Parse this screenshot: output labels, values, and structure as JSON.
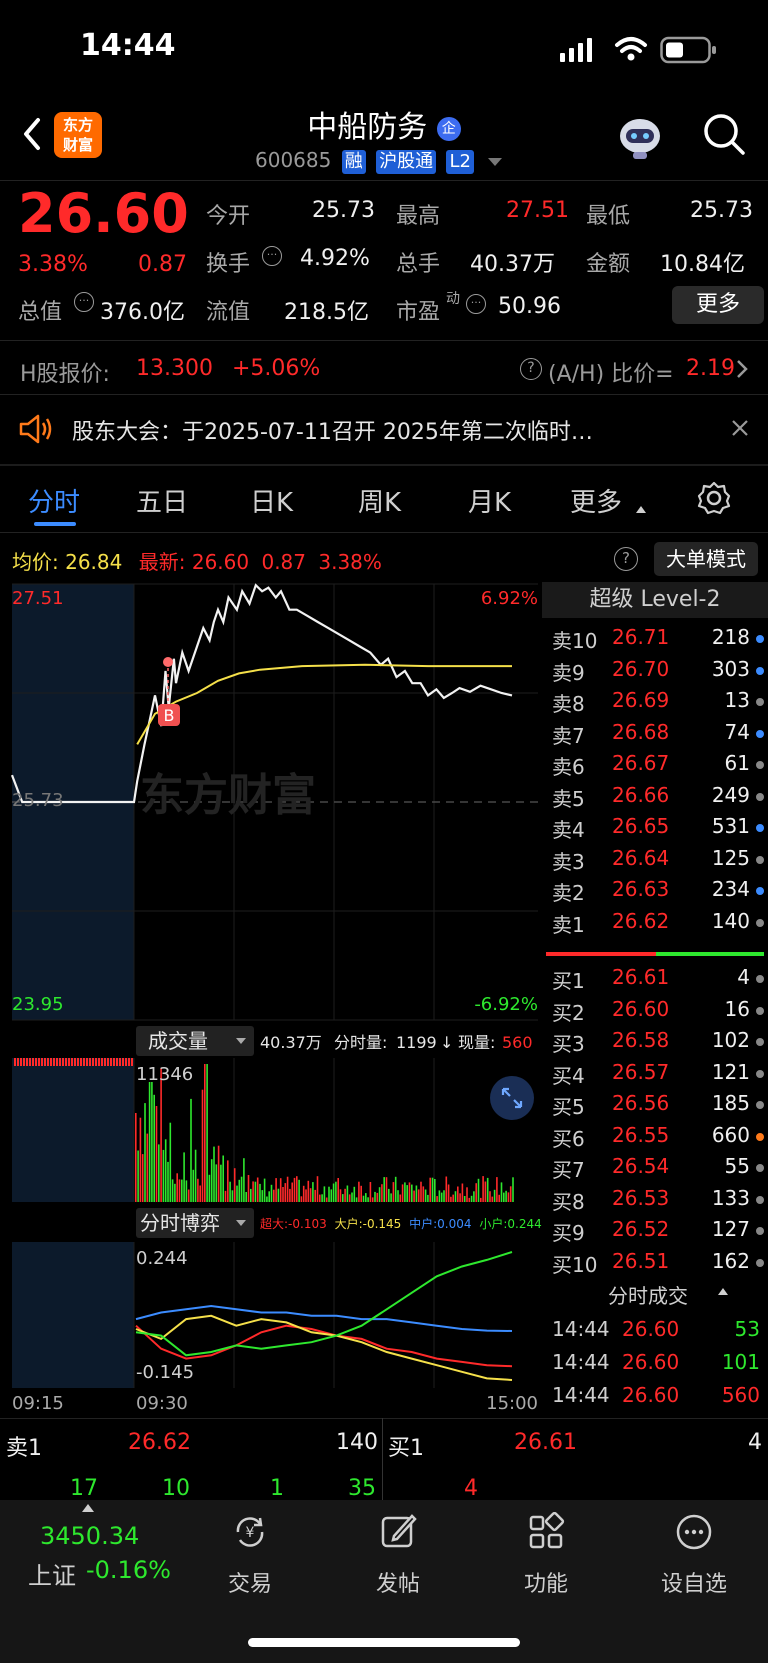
{
  "status": {
    "time": "14:44"
  },
  "header": {
    "logo_line1": "东方",
    "logo_line2": "财富",
    "name": "中船防务",
    "name_badge": "企",
    "code": "600685",
    "tags": [
      "融",
      "沪股通",
      "L2"
    ]
  },
  "quote": {
    "price": "26.60",
    "change_pct": "3.38%",
    "change": "0.87",
    "open_label": "今开",
    "open": "25.73",
    "high_label": "最高",
    "high": "27.51",
    "low_label": "最低",
    "low": "25.73",
    "turnover_label": "换手",
    "turnover": "4.92%",
    "volume_label": "总手",
    "volume": "40.37万",
    "amount_label": "金额",
    "amount": "10.84亿",
    "mktcap_label": "总值",
    "mktcap": "376.0亿",
    "float_label": "流值",
    "float": "218.5亿",
    "pe_label": "市盈",
    "pe_sup": "动",
    "pe": "50.96",
    "more_label": "更多"
  },
  "hshare": {
    "label": "H股报价:",
    "price": "13.300",
    "pct": "+5.06%",
    "ah_label": "(A/H) 比价=",
    "ah_value": "2.19"
  },
  "notice": {
    "text": "股东大会：于2025-07-11召开 2025年第二次临时…"
  },
  "tabs": [
    "分时",
    "五日",
    "日K",
    "周K",
    "月K",
    "更多"
  ],
  "info_line": {
    "avg_label": "均价:",
    "avg": "26.84",
    "latest_label": "最新:",
    "latest": "26.60",
    "latest_chg": "0.87",
    "latest_pct": "3.38%",
    "mode_label": "大单模式"
  },
  "chart_data": {
    "type": "line",
    "price_axis": {
      "top": "27.51",
      "bottom": "23.95",
      "mid": "25.73",
      "top_pct": "6.92%",
      "bottom_pct": "-6.92%"
    },
    "ylim": [
      23.95,
      27.51
    ],
    "watermark": "东方财富",
    "price_series": [
      [
        0,
        25.95
      ],
      [
        1,
        25.73
      ],
      [
        3,
        25.73
      ],
      [
        6,
        25.73
      ],
      [
        9,
        25.73
      ],
      [
        11,
        25.73
      ],
      [
        12,
        25.73
      ],
      [
        12.3,
        25.9
      ],
      [
        13,
        26.2
      ],
      [
        13.5,
        26.4
      ],
      [
        14,
        26.6
      ],
      [
        14.6,
        26.35
      ],
      [
        15,
        26.8
      ],
      [
        15.3,
        26.5
      ],
      [
        15.8,
        26.9
      ],
      [
        16,
        26.7
      ],
      [
        16.6,
        26.95
      ],
      [
        17.2,
        26.8
      ],
      [
        18,
        27.0
      ],
      [
        18.6,
        27.15
      ],
      [
        19.2,
        27.05
      ],
      [
        19.6,
        27.2
      ],
      [
        20,
        27.3
      ],
      [
        20.5,
        27.2
      ],
      [
        21,
        27.4
      ],
      [
        21.8,
        27.3
      ],
      [
        22.3,
        27.45
      ],
      [
        23,
        27.35
      ],
      [
        23.6,
        27.5
      ],
      [
        24.2,
        27.45
      ],
      [
        24.8,
        27.48
      ],
      [
        25.5,
        27.4
      ],
      [
        26,
        27.45
      ],
      [
        26.8,
        27.3
      ],
      [
        27.5,
        27.3
      ],
      [
        28.5,
        27.25
      ],
      [
        29.5,
        27.2
      ],
      [
        30.5,
        27.15
      ],
      [
        31.5,
        27.1
      ],
      [
        32.5,
        27.05
      ],
      [
        33.5,
        27.0
      ],
      [
        34.5,
        26.95
      ],
      [
        35.5,
        26.85
      ],
      [
        36.2,
        26.9
      ],
      [
        37,
        26.75
      ],
      [
        37.8,
        26.8
      ],
      [
        38.5,
        26.7
      ],
      [
        39.3,
        26.7
      ],
      [
        40,
        26.6
      ],
      [
        40.8,
        26.65
      ],
      [
        41.5,
        26.58
      ],
      [
        42.3,
        26.62
      ],
      [
        43,
        26.66
      ],
      [
        44,
        26.63
      ],
      [
        45,
        26.68
      ],
      [
        46,
        26.65
      ],
      [
        47,
        26.62
      ],
      [
        48,
        26.6
      ]
    ],
    "avg_series": [
      [
        12.3,
        26.2
      ],
      [
        14,
        26.45
      ],
      [
        16,
        26.55
      ],
      [
        18,
        26.62
      ],
      [
        20,
        26.72
      ],
      [
        22,
        26.78
      ],
      [
        24,
        26.81
      ],
      [
        28,
        26.84
      ],
      [
        34,
        26.85
      ],
      [
        40,
        26.84
      ],
      [
        48,
        26.84
      ]
    ],
    "marker_label": "B",
    "volume_panel": {
      "title": "成交量",
      "total": "40.37万",
      "period_label": "分时量:",
      "period_value": "1199",
      "now_label": "现量:",
      "now_value": "560",
      "max_label": "11346"
    },
    "game_panel": {
      "title": "分时博弈",
      "super_label": "超大:",
      "super": "-0.103",
      "large_label": "大户:",
      "large": "-0.145",
      "mid_label": "中户:",
      "mid": "0.004",
      "small_label": "小户:",
      "small": "0.244",
      "top": "0.244",
      "bottom": "-0.145",
      "ylim": [
        -0.145,
        0.244
      ],
      "series": [
        {
          "name": "超大",
          "color": "#ff2a2a",
          "values": [
            0.02,
            -0.05,
            -0.08,
            -0.07,
            -0.04,
            0.0,
            0.02,
            0.01,
            -0.01,
            -0.02,
            -0.05,
            -0.06,
            -0.08,
            -0.09,
            -0.1,
            -0.103
          ]
        },
        {
          "name": "大户",
          "color": "#f5e04a",
          "values": [
            0.01,
            -0.02,
            0.04,
            0.05,
            0.02,
            0.04,
            0.03,
            0.0,
            -0.01,
            -0.03,
            -0.06,
            -0.08,
            -0.1,
            -0.12,
            -0.14,
            -0.145
          ]
        },
        {
          "name": "中户",
          "color": "#3c8cff",
          "values": [
            0.04,
            0.06,
            0.07,
            0.08,
            0.07,
            0.06,
            0.06,
            0.05,
            0.05,
            0.04,
            0.04,
            0.03,
            0.02,
            0.01,
            0.005,
            0.004
          ]
        },
        {
          "name": "小户",
          "color": "#2ee82e",
          "values": [
            0.0,
            -0.01,
            -0.07,
            -0.06,
            -0.04,
            -0.05,
            -0.04,
            -0.03,
            -0.01,
            0.02,
            0.07,
            0.12,
            0.17,
            0.2,
            0.22,
            0.244
          ]
        }
      ]
    },
    "x_ticks": [
      "09:15",
      "09:30",
      "15:00"
    ]
  },
  "orderbook": {
    "title": "超级 Level-2",
    "asks": [
      {
        "label": "卖10",
        "price": "26.71",
        "vol": "218",
        "dot": "#3c8cff"
      },
      {
        "label": "卖9",
        "price": "26.70",
        "vol": "303",
        "dot": "#3c8cff"
      },
      {
        "label": "卖8",
        "price": "26.69",
        "vol": "13",
        "dot": "#888888"
      },
      {
        "label": "卖7",
        "price": "26.68",
        "vol": "74",
        "dot": "#3c8cff"
      },
      {
        "label": "卖6",
        "price": "26.67",
        "vol": "61",
        "dot": "#888888"
      },
      {
        "label": "卖5",
        "price": "26.66",
        "vol": "249",
        "dot": "#888888"
      },
      {
        "label": "卖4",
        "price": "26.65",
        "vol": "531",
        "dot": "#3c8cff"
      },
      {
        "label": "卖3",
        "price": "26.64",
        "vol": "125",
        "dot": "#888888"
      },
      {
        "label": "卖2",
        "price": "26.63",
        "vol": "234",
        "dot": "#3c8cff"
      },
      {
        "label": "卖1",
        "price": "26.62",
        "vol": "140",
        "dot": "#888888"
      }
    ],
    "bids": [
      {
        "label": "买1",
        "price": "26.61",
        "vol": "4",
        "dot": "#888888"
      },
      {
        "label": "买2",
        "price": "26.60",
        "vol": "16",
        "dot": "#888888"
      },
      {
        "label": "买3",
        "price": "26.58",
        "vol": "102",
        "dot": "#888888"
      },
      {
        "label": "买4",
        "price": "26.57",
        "vol": "121",
        "dot": "#888888"
      },
      {
        "label": "买5",
        "price": "26.56",
        "vol": "185",
        "dot": "#888888"
      },
      {
        "label": "买6",
        "price": "26.55",
        "vol": "660",
        "dot": "#ff7a1a"
      },
      {
        "label": "买7",
        "price": "26.54",
        "vol": "55",
        "dot": "#888888"
      },
      {
        "label": "买8",
        "price": "26.53",
        "vol": "133",
        "dot": "#888888"
      },
      {
        "label": "买9",
        "price": "26.52",
        "vol": "127",
        "dot": "#888888"
      },
      {
        "label": "买10",
        "price": "26.51",
        "vol": "162",
        "dot": "#888888"
      }
    ],
    "ticks_title": "分时成交",
    "ticks": [
      {
        "time": "14:44",
        "price": "26.60",
        "vol": "53",
        "color": "#2ee82e"
      },
      {
        "time": "14:44",
        "price": "26.60",
        "vol": "101",
        "color": "#2ee82e"
      },
      {
        "time": "14:44",
        "price": "26.60",
        "vol": "560",
        "color": "#ff2a2a"
      }
    ]
  },
  "bottom_quote": {
    "sell_label": "卖1",
    "sell_price": "26.62",
    "sell_vol": "140",
    "buy_label": "买1",
    "buy_price": "26.61",
    "buy_vol": "4",
    "sell_breakdown": [
      "17",
      "10",
      "1",
      "35"
    ],
    "buy_breakdown": [
      "4"
    ]
  },
  "nav": {
    "index_value": "3450.34",
    "index_name": "上证",
    "index_pct": "-0.16%",
    "items": [
      "交易",
      "发帖",
      "功能",
      "设自选"
    ]
  }
}
